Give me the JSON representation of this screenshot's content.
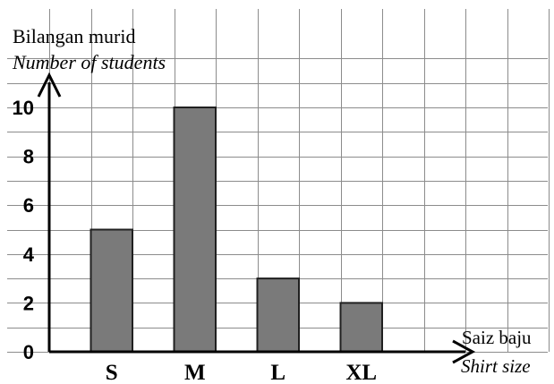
{
  "chart_data": {
    "type": "bar",
    "categories": [
      "S",
      "M",
      "L",
      "XL"
    ],
    "values": [
      5,
      10,
      3,
      2
    ],
    "ylabel_line1": "Bilangan murid",
    "ylabel_line2": "Number of students",
    "xlabel_line1": "Saiz baju",
    "xlabel_line2": "Shirt size",
    "yticks": [
      0,
      2,
      4,
      6,
      8,
      10
    ],
    "ylim": [
      0,
      10
    ],
    "grid": true,
    "bar_color": "#7a7a7a",
    "bar_edge_color": "#202020",
    "grid_color": "#8c8c8c"
  }
}
